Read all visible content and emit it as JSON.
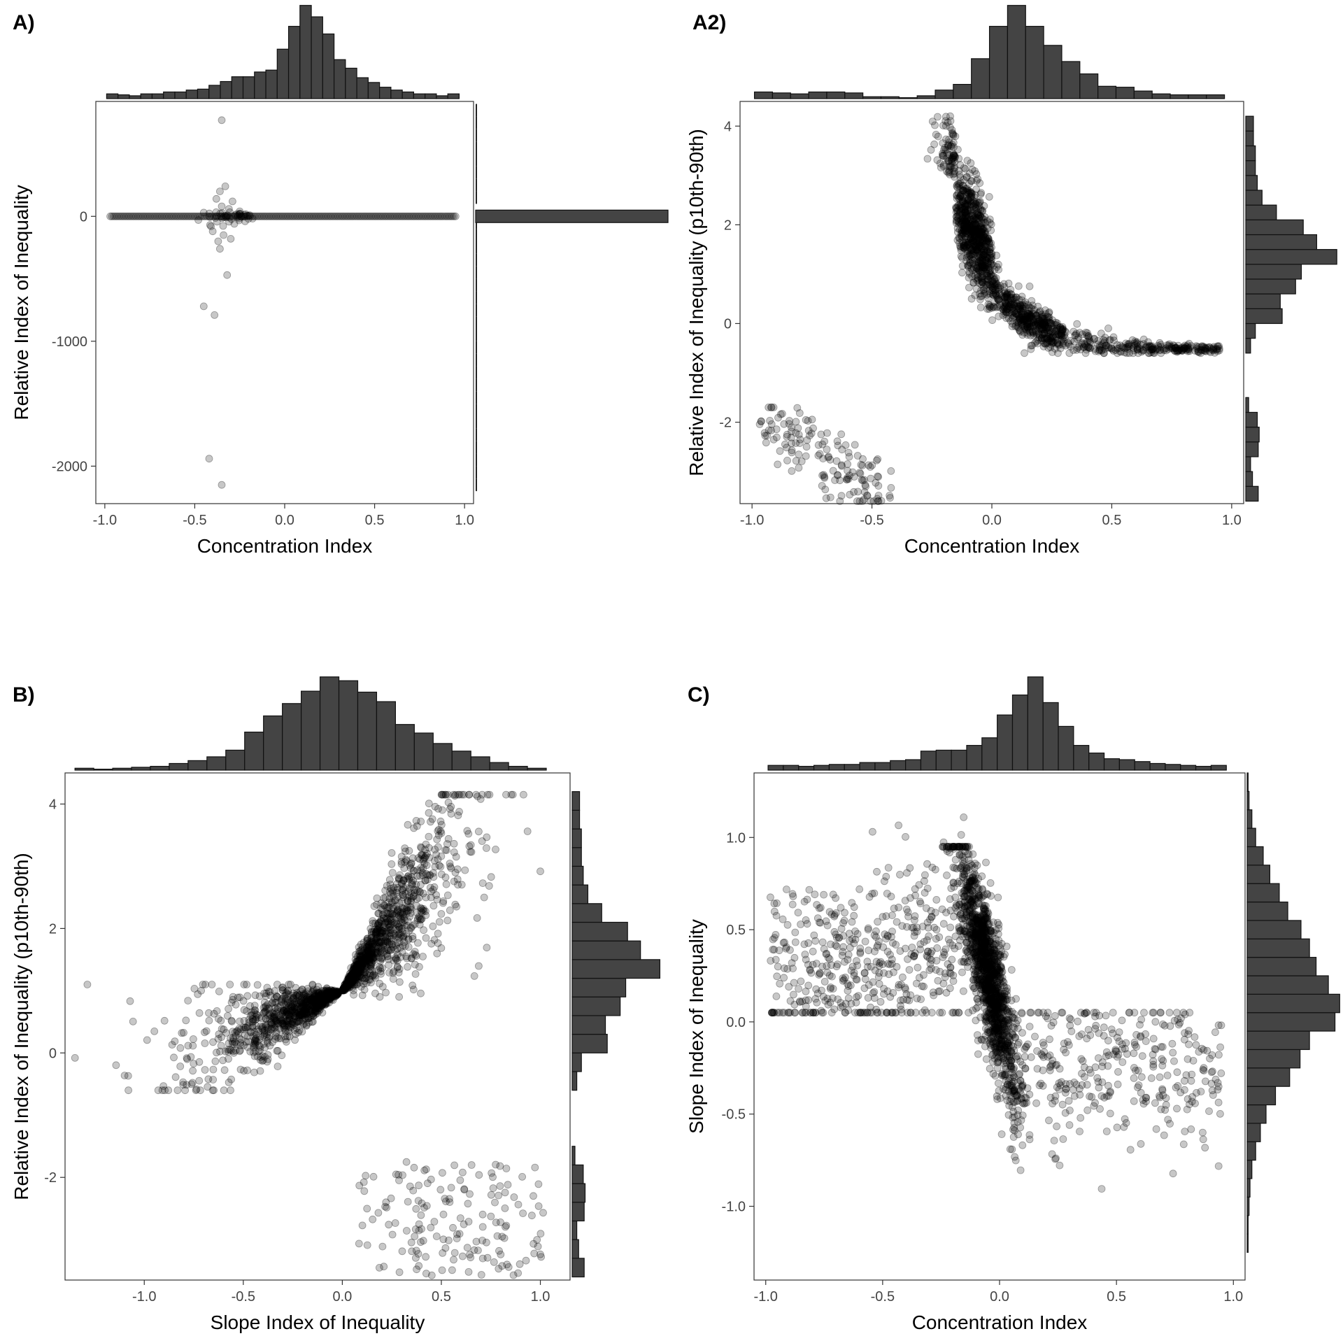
{
  "chart_data": [
    {
      "panel": "A)",
      "type": "scatter",
      "xlabel": "Concentration Index",
      "ylabel": "Relative Index of Inequality",
      "xlim": [
        -1.05,
        1.05
      ],
      "ylim": [
        -2300,
        920
      ],
      "xticks": [
        -1.0,
        -0.5,
        0.0,
        0.5,
        1.0
      ],
      "xtick_labels": [
        "-1.0",
        "-0.5",
        "0.0",
        "0.5",
        "1.0"
      ],
      "yticks": [
        -2000,
        -1000,
        0
      ],
      "ytick_labels": [
        "-2000",
        "-1000",
        "0"
      ],
      "grid": false,
      "marginal_x_hist": [
        0.05,
        0.04,
        0.03,
        0.05,
        0.05,
        0.07,
        0.07,
        0.09,
        0.1,
        0.14,
        0.18,
        0.23,
        0.23,
        0.28,
        0.3,
        0.52,
        0.76,
        0.98,
        0.86,
        0.68,
        0.41,
        0.32,
        0.22,
        0.17,
        0.12,
        0.09,
        0.07,
        0.05,
        0.05,
        0.03,
        0.05
      ],
      "marginal_y_hist": {
        "bins": [
          -2300,
          -2200,
          -2100,
          -2000,
          -1900,
          -1800,
          -1700,
          -1600,
          -1500,
          -1400,
          -1300,
          -1200,
          -1100,
          -1000,
          -900,
          -800,
          -700,
          -600,
          -500,
          -400,
          -300,
          -200,
          -100,
          0,
          100,
          200,
          300,
          400,
          500,
          600,
          700,
          800,
          900
        ],
        "counts": [
          0,
          0.02,
          0.02,
          0.02,
          0.02,
          0.02,
          0.02,
          0.02,
          0.02,
          0.02,
          0.02,
          0.02,
          0.02,
          0.02,
          0.02,
          0.02,
          0.02,
          0.02,
          0.02,
          0.02,
          0.02,
          0.02,
          0.02,
          1.0,
          0.02,
          0.02,
          0.02,
          0.02,
          0.02,
          0.02,
          0.02,
          0.02,
          0
        ]
      },
      "points": [
        [
          -0.35,
          770
        ],
        [
          -0.33,
          240
        ],
        [
          -0.36,
          200
        ],
        [
          -0.38,
          140
        ],
        [
          -0.29,
          120
        ],
        [
          -0.35,
          80
        ],
        [
          -0.31,
          60
        ],
        [
          -0.4,
          -120
        ],
        [
          -0.34,
          -150
        ],
        [
          -0.3,
          -180
        ],
        [
          -0.37,
          -200
        ],
        [
          -0.36,
          -260
        ],
        [
          -0.32,
          -470
        ],
        [
          -0.45,
          -720
        ],
        [
          -0.39,
          -790
        ],
        [
          -0.42,
          -1940
        ],
        [
          -0.35,
          -2150
        ],
        [
          -0.25,
          40
        ],
        [
          -0.45,
          30
        ],
        [
          -0.22,
          -40
        ],
        [
          -0.48,
          -30
        ],
        [
          -0.28,
          -60
        ],
        [
          -0.41,
          -80
        ]
      ]
    },
    {
      "panel": "A2)",
      "type": "scatter",
      "xlabel": "Concentration Index",
      "ylabel": "Relative Index of Inequality (p10th-90th)",
      "xlim": [
        -1.05,
        1.05
      ],
      "ylim": [
        -3.65,
        4.5
      ],
      "xticks": [
        -1.0,
        -0.5,
        0.0,
        0.5,
        1.0
      ],
      "xtick_labels": [
        "-1.0",
        "-0.5",
        "0.0",
        "0.5",
        "1.0"
      ],
      "yticks": [
        -2,
        0,
        2,
        4
      ],
      "ytick_labels": [
        "-2",
        "0",
        "2",
        "4"
      ],
      "grid": false,
      "marginal_x_hist": [
        0.07,
        0.06,
        0.05,
        0.07,
        0.07,
        0.06,
        0.02,
        0.02,
        0.01,
        0.03,
        0.09,
        0.15,
        0.42,
        0.76,
        0.98,
        0.76,
        0.56,
        0.39,
        0.26,
        0.13,
        0.12,
        0.08,
        0.05,
        0.04,
        0.04,
        0.04
      ],
      "marginal_y_hist": {
        "bins": [
          -3.6,
          -3.3,
          -3.0,
          -2.7,
          -2.4,
          -2.1,
          -1.8,
          -1.5,
          -1.2,
          -0.9,
          -0.6,
          -0.3,
          0.0,
          0.3,
          0.6,
          0.9,
          1.2,
          1.5,
          1.8,
          2.1,
          2.4,
          2.7,
          3.0,
          3.3,
          3.6,
          3.9,
          4.2
        ],
        "counts": [
          0.13,
          0.07,
          0.05,
          0.13,
          0.14,
          0.12,
          0.03,
          0,
          0,
          0,
          0.05,
          0.1,
          0.38,
          0.36,
          0.52,
          0.58,
          0.95,
          0.74,
          0.6,
          0.32,
          0.17,
          0.12,
          0.1,
          0.1,
          0.08,
          0.08,
          0
        ]
      },
      "points": []
    },
    {
      "panel": "B)",
      "type": "scatter",
      "xlabel": "Slope Index of Inequality",
      "ylabel": "Relative Index of Inequality (p10th-90th)",
      "xlim": [
        -1.4,
        1.15
      ],
      "ylim": [
        -3.65,
        4.5
      ],
      "xticks": [
        -1.0,
        -0.5,
        0.0,
        0.5,
        1.0
      ],
      "xtick_labels": [
        "-1.0",
        "-0.5",
        "0.0",
        "0.5",
        "1.0"
      ],
      "yticks": [
        -2,
        0,
        2,
        4
      ],
      "ytick_labels": [
        "-2",
        "0",
        "2",
        "4"
      ],
      "grid": false,
      "marginal_x_hist": [
        0.02,
        0.01,
        0.02,
        0.03,
        0.04,
        0.07,
        0.1,
        0.14,
        0.21,
        0.4,
        0.57,
        0.7,
        0.83,
        0.98,
        0.94,
        0.82,
        0.72,
        0.48,
        0.39,
        0.28,
        0.2,
        0.14,
        0.08,
        0.04,
        0.02
      ],
      "marginal_y_hist": {
        "bins": [
          -3.6,
          -3.3,
          -3.0,
          -2.7,
          -2.4,
          -2.1,
          -1.8,
          -1.5,
          -1.2,
          -0.9,
          -0.6,
          -0.3,
          0.0,
          0.3,
          0.6,
          0.9,
          1.2,
          1.5,
          1.8,
          2.1,
          2.4,
          2.7,
          3.0,
          3.3,
          3.6,
          3.9,
          4.2
        ],
        "counts": [
          0.13,
          0.07,
          0.05,
          0.13,
          0.14,
          0.12,
          0.03,
          0,
          0,
          0,
          0.05,
          0.1,
          0.38,
          0.36,
          0.52,
          0.58,
          0.95,
          0.74,
          0.6,
          0.32,
          0.17,
          0.12,
          0.1,
          0.1,
          0.08,
          0.08,
          0
        ]
      },
      "points": []
    },
    {
      "panel": "C)",
      "type": "scatter",
      "xlabel": "Concentration Index",
      "ylabel": "Slope Index of Inequality",
      "xlim": [
        -1.05,
        1.05
      ],
      "ylim": [
        -1.4,
        1.35
      ],
      "xticks": [
        -1.0,
        -0.5,
        0.0,
        0.5,
        1.0
      ],
      "xtick_labels": [
        "-1.0",
        "-0.5",
        "0.0",
        "0.5",
        "1.0"
      ],
      "yticks": [
        -1.0,
        -0.5,
        0.0,
        0.5,
        1.0
      ],
      "ytick_labels": [
        "-1.0",
        "-0.5",
        "0.0",
        "0.5",
        "1.0"
      ],
      "grid": false,
      "marginal_x_hist": [
        0.05,
        0.05,
        0.04,
        0.05,
        0.06,
        0.06,
        0.08,
        0.08,
        0.1,
        0.11,
        0.2,
        0.21,
        0.21,
        0.26,
        0.34,
        0.58,
        0.79,
        0.98,
        0.71,
        0.46,
        0.26,
        0.18,
        0.12,
        0.11,
        0.09,
        0.07,
        0.06,
        0.05,
        0.04,
        0.05
      ],
      "marginal_y_hist": {
        "bins": [
          -1.35,
          -1.25,
          -1.15,
          -1.05,
          -0.95,
          -0.85,
          -0.75,
          -0.65,
          -0.55,
          -0.45,
          -0.35,
          -0.25,
          -0.15,
          -0.05,
          0.05,
          0.15,
          0.25,
          0.35,
          0.45,
          0.55,
          0.65,
          0.75,
          0.85,
          0.95,
          1.05,
          1.15,
          1.25,
          1.35
        ],
        "counts": [
          0,
          0.01,
          0.01,
          0.02,
          0.03,
          0.05,
          0.09,
          0.14,
          0.2,
          0.3,
          0.45,
          0.56,
          0.66,
          0.93,
          0.98,
          0.86,
          0.73,
          0.66,
          0.57,
          0.43,
          0.34,
          0.24,
          0.17,
          0.09,
          0.05,
          0.02,
          0.01
        ]
      },
      "points": []
    }
  ]
}
